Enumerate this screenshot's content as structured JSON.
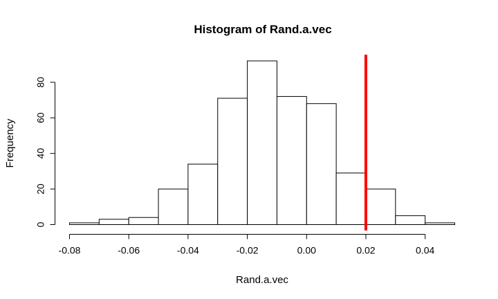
{
  "chart_data": {
    "type": "bar",
    "title": "Histogram of Rand.a.vec",
    "xlabel": "Rand.a.vec",
    "ylabel": "Frequency",
    "bins": [
      {
        "x0": -0.08,
        "x1": -0.07,
        "count": 1
      },
      {
        "x0": -0.07,
        "x1": -0.06,
        "count": 3
      },
      {
        "x0": -0.06,
        "x1": -0.05,
        "count": 4
      },
      {
        "x0": -0.05,
        "x1": -0.04,
        "count": 20
      },
      {
        "x0": -0.04,
        "x1": -0.03,
        "count": 34
      },
      {
        "x0": -0.03,
        "x1": -0.02,
        "count": 71
      },
      {
        "x0": -0.02,
        "x1": -0.01,
        "count": 92
      },
      {
        "x0": -0.01,
        "x1": 0.0,
        "count": 72
      },
      {
        "x0": 0.0,
        "x1": 0.01,
        "count": 68
      },
      {
        "x0": 0.01,
        "x1": 0.02,
        "count": 29
      },
      {
        "x0": 0.02,
        "x1": 0.03,
        "count": 20
      },
      {
        "x0": 0.03,
        "x1": 0.04,
        "count": 5
      },
      {
        "x0": 0.04,
        "x1": 0.05,
        "count": 1
      }
    ],
    "xlim": [
      -0.08,
      0.05
    ],
    "ylim": [
      0,
      92
    ],
    "x_ticks": [
      -0.08,
      -0.06,
      -0.04,
      -0.02,
      0.0,
      0.02,
      0.04
    ],
    "x_tick_labels": [
      "-0.08",
      "-0.06",
      "-0.04",
      "-0.02",
      "0.00",
      "0.02",
      "0.04"
    ],
    "y_ticks": [
      0,
      20,
      40,
      60,
      80
    ],
    "y_tick_labels": [
      "0",
      "20",
      "40",
      "60",
      "80"
    ],
    "grid": false,
    "reference_line": {
      "x": 0.02,
      "color": "#ff0000"
    }
  }
}
